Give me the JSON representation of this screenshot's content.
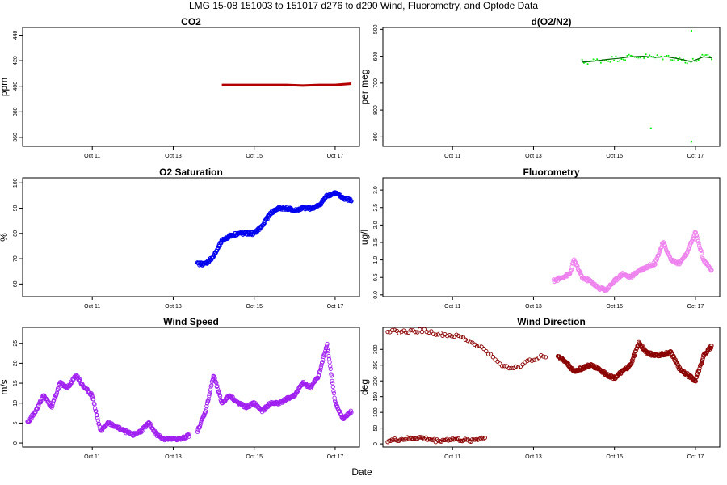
{
  "title": "LMG   15-08    151003 to 151017    d276 to d290   Wind, Fluorometry, and Optode Data",
  "xlabel": "Date",
  "x_ticks": [
    "Oct 11",
    "Oct 13",
    "Oct 15",
    "Oct 17"
  ],
  "chart_data": [
    {
      "id": "co2",
      "type": "scatter",
      "title": "CO2",
      "ylabel": "ppm",
      "color": "#b30000",
      "marker": "line",
      "xlim": [
        9.28,
        17.6
      ],
      "ylim": [
        353,
        446
      ],
      "yticks": [
        360,
        380,
        400,
        420,
        440
      ],
      "x_ticks": [
        11,
        13,
        15,
        17
      ],
      "series": [
        {
          "x": [
            14.2,
            14.6,
            15.0,
            15.4,
            15.8,
            16.2,
            16.6,
            17.0,
            17.4
          ],
          "y": [
            401,
            401,
            401,
            401,
            401,
            400.5,
            401,
            401,
            402
          ]
        }
      ]
    },
    {
      "id": "o2n2",
      "type": "scatter",
      "title": "d(O2/N2)",
      "ylabel": "per meg",
      "color": "#00ee00",
      "color2": "#006400",
      "marker": "dot",
      "xlim": [
        9.28,
        17.6
      ],
      "ylim": [
        -935,
        -493
      ],
      "yticks": [
        -500,
        -600,
        -700,
        -800,
        -900
      ],
      "ytick_labels": [
        "500",
        "600",
        "700",
        "800",
        "900"
      ],
      "x_ticks": [
        11,
        13,
        15,
        17
      ],
      "series": [
        {
          "x": [
            14.2,
            14.5,
            14.8,
            15.1,
            15.4,
            15.7,
            16.0,
            16.3,
            16.6,
            16.9,
            17.2,
            17.4
          ],
          "y": [
            -622,
            -618,
            -612,
            -608,
            -602,
            -600,
            -604,
            -602,
            -610,
            -620,
            -602,
            -606
          ]
        }
      ],
      "outliers": [
        {
          "x": 15.9,
          "y": -868
        },
        {
          "x": 16.9,
          "y": -918
        },
        {
          "x": 16.9,
          "y": -505
        }
      ]
    },
    {
      "id": "o2sat",
      "type": "scatter",
      "title": "O2 Saturation",
      "ylabel": "%",
      "color": "#0000ee",
      "marker": "circle",
      "xlim": [
        9.28,
        17.6
      ],
      "ylim": [
        55,
        102
      ],
      "yticks": [
        60,
        70,
        80,
        90,
        100
      ],
      "x_ticks": [
        11,
        13,
        15,
        17
      ],
      "series": [
        {
          "x": [
            13.6,
            13.8,
            14.0,
            14.2,
            14.4,
            14.6,
            14.8,
            15.0,
            15.2,
            15.4,
            15.6,
            15.8,
            16.0,
            16.2,
            16.4,
            16.6,
            16.8,
            17.0,
            17.2,
            17.4
          ],
          "y": [
            68,
            68,
            71,
            77,
            79,
            80,
            80,
            80,
            83,
            88,
            90,
            90,
            89,
            90,
            90,
            91,
            95,
            96,
            94,
            93
          ]
        }
      ]
    },
    {
      "id": "fluor",
      "type": "scatter",
      "title": "Fluorometry",
      "ylabel": "ug/l",
      "color": "#ee82ee",
      "marker": "circle",
      "xlim": [
        9.28,
        17.6
      ],
      "ylim": [
        -0.05,
        3.35
      ],
      "yticks": [
        0.0,
        0.5,
        1.0,
        1.5,
        2.0,
        2.5,
        3.0
      ],
      "ytick_labels": [
        "0.0",
        "0.5",
        "1.0",
        "1.5",
        "2.0",
        "2.5",
        "3.0"
      ],
      "x_ticks": [
        11,
        13,
        15,
        17
      ],
      "series": [
        {
          "x": [
            13.5,
            13.7,
            13.9,
            14.0,
            14.2,
            14.4,
            14.6,
            14.8,
            15.0,
            15.2,
            15.4,
            15.6,
            15.8,
            16.0,
            16.2,
            16.4,
            16.6,
            16.8,
            17.0,
            17.2,
            17.4
          ],
          "y": [
            0.4,
            0.5,
            0.6,
            1.0,
            0.5,
            0.4,
            0.2,
            0.15,
            0.4,
            0.6,
            0.5,
            0.7,
            0.8,
            0.9,
            1.5,
            1.0,
            0.9,
            1.2,
            1.8,
            1.0,
            0.7
          ]
        }
      ]
    },
    {
      "id": "wspd",
      "type": "scatter",
      "title": "Wind Speed",
      "ylabel": "m/s",
      "color": "#a020f0",
      "marker": "circle",
      "xlim": [
        9.28,
        17.6
      ],
      "ylim": [
        -1,
        29
      ],
      "yticks": [
        0,
        5,
        10,
        15,
        20,
        25
      ],
      "x_ticks": [
        11,
        13,
        15,
        17
      ],
      "series": [
        {
          "x": [
            9.4,
            9.6,
            9.8,
            10.0,
            10.2,
            10.4,
            10.6,
            10.8,
            11.0,
            11.2,
            11.4,
            11.6,
            11.8,
            12.0,
            12.2,
            12.4,
            12.6,
            12.8,
            13.0,
            13.2,
            13.4
          ],
          "y": [
            5,
            8,
            12,
            9,
            15,
            14,
            17,
            14,
            12,
            3,
            5,
            4,
            3,
            2,
            3,
            5,
            2,
            1,
            1,
            1,
            2
          ]
        },
        {
          "x": [
            13.6,
            13.8,
            14.0,
            14.2,
            14.4,
            14.6,
            14.8,
            15.0,
            15.2,
            15.4,
            15.6,
            15.8,
            16.0,
            16.2,
            16.4,
            16.6,
            16.8,
            17.0,
            17.2,
            17.4
          ],
          "y": [
            3,
            8,
            17,
            10,
            12,
            10,
            9,
            10,
            8,
            10,
            10,
            11,
            12,
            15,
            14,
            17,
            25,
            10,
            6,
            8
          ]
        }
      ]
    },
    {
      "id": "wdir",
      "type": "scatter",
      "title": "Wind Direction",
      "ylabel": "deg",
      "color": "#8b0000",
      "marker": "circle",
      "xlim": [
        9.28,
        17.6
      ],
      "ylim": [
        -10,
        370
      ],
      "yticks": [
        0,
        50,
        100,
        150,
        200,
        250,
        300
      ],
      "x_ticks": [
        11,
        13,
        15,
        17
      ],
      "series": [
        {
          "x": [
            9.4,
            9.7,
            10.0,
            10.3,
            10.6,
            10.9,
            11.2,
            11.5,
            11.8,
            12.1,
            12.4,
            12.7,
            13.0,
            13.3
          ],
          "y": [
            360,
            355,
            358,
            360,
            350,
            345,
            340,
            320,
            300,
            260,
            240,
            250,
            270,
            280
          ]
        },
        {
          "x": [
            9.4,
            9.8,
            10.2,
            10.6,
            11.0,
            11.4,
            11.8
          ],
          "y": [
            10,
            15,
            20,
            10,
            15,
            10,
            20
          ]
        },
        {
          "x": [
            13.6,
            13.8,
            14.0,
            14.2,
            14.4,
            14.6,
            14.8,
            15.0,
            15.2,
            15.4,
            15.6,
            15.8,
            16.0,
            16.2,
            16.4,
            16.6,
            16.8,
            17.0,
            17.2,
            17.4
          ],
          "y": [
            280,
            260,
            230,
            240,
            250,
            240,
            220,
            210,
            230,
            250,
            320,
            290,
            280,
            285,
            290,
            240,
            220,
            200,
            280,
            310
          ]
        }
      ]
    }
  ]
}
